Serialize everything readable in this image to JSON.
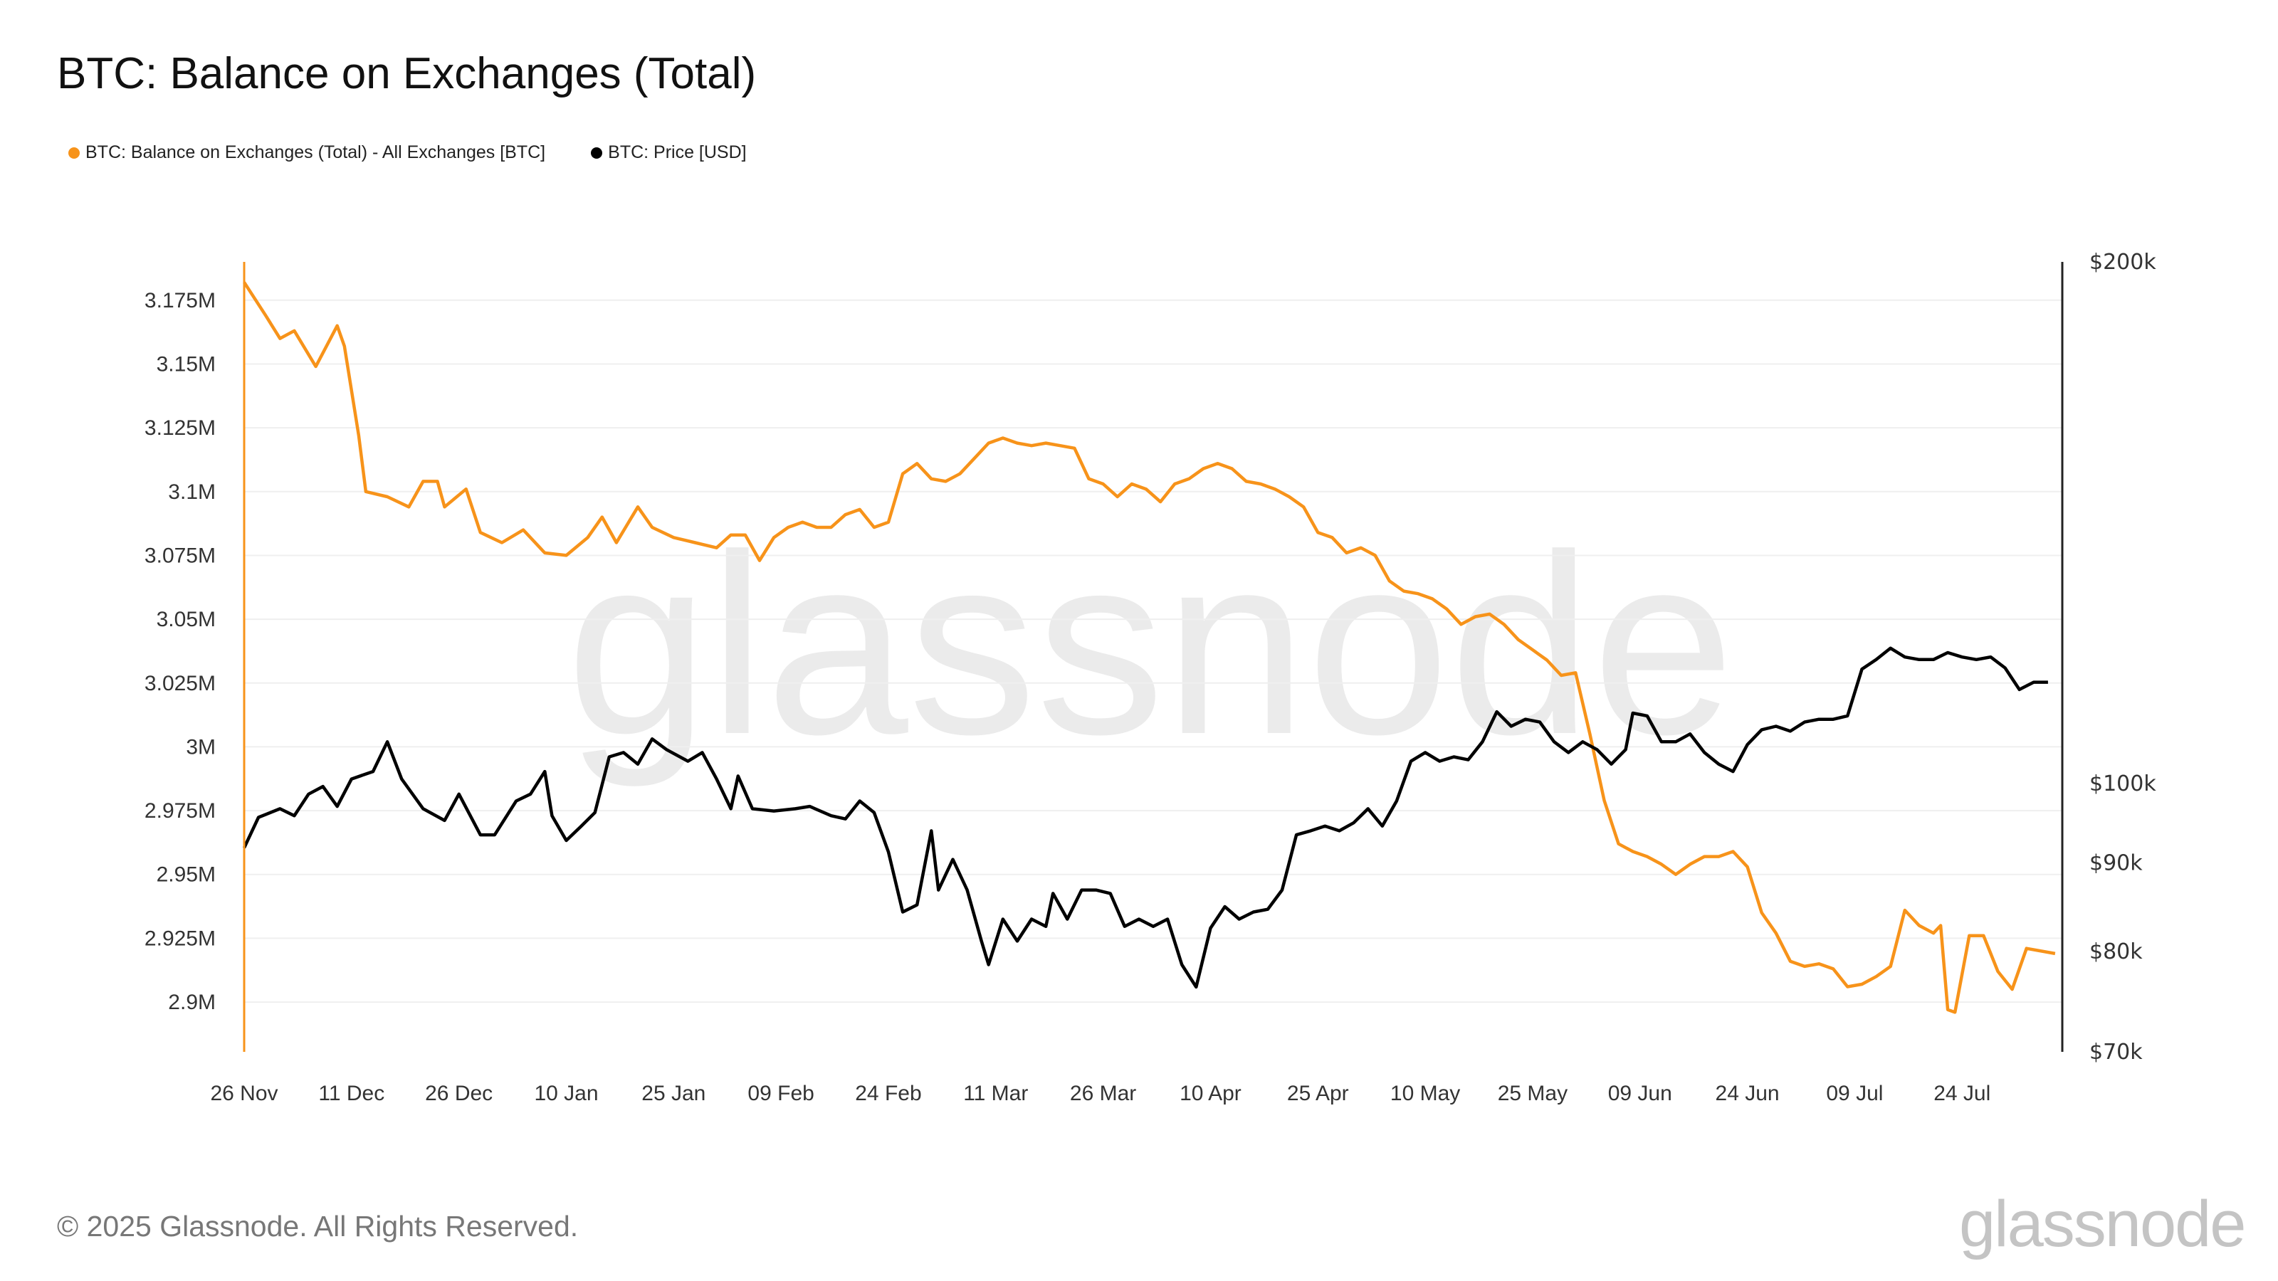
{
  "chart_data": {
    "type": "line",
    "title": "BTC: Balance on Exchanges (Total)",
    "watermark": "glassnode",
    "grid": true,
    "legend_placement": "top-left",
    "x_ticks": [
      "26 Nov",
      "11 Dec",
      "26 Dec",
      "10 Jan",
      "25 Jan",
      "09 Feb",
      "24 Feb",
      "11 Mar",
      "26 Mar",
      "10 Apr",
      "25 Apr",
      "10 May",
      "25 May",
      "09 Jun",
      "24 Jun",
      "09 Jul",
      "24 Jul"
    ],
    "x_tick_dates": [
      "2024-11-26",
      "2024-12-11",
      "2024-12-26",
      "2025-01-10",
      "2025-01-25",
      "2025-02-09",
      "2025-02-24",
      "2025-03-11",
      "2025-03-26",
      "2025-04-10",
      "2025-04-25",
      "2025-05-10",
      "2025-05-25",
      "2025-06-09",
      "2025-06-24",
      "2025-07-09",
      "2025-07-24"
    ],
    "xlim": [
      "2024-11-26",
      "2025-08-07"
    ],
    "y_left": {
      "scale": "linear",
      "lim": [
        2880500,
        3190000
      ],
      "ticks": [
        2900000,
        2925000,
        2950000,
        2975000,
        3000000,
        3025000,
        3050000,
        3075000,
        3100000,
        3125000,
        3150000,
        3175000
      ],
      "tick_labels": [
        "2.9M",
        "2.925M",
        "2.95M",
        "2.975M",
        "3M",
        "3.025M",
        "3.05M",
        "3.075M",
        "3.1M",
        "3.125M",
        "3.15M",
        "3.175M"
      ]
    },
    "y_right": {
      "scale": "log",
      "lim": [
        70000,
        200000
      ],
      "ticks": [
        70000,
        80000,
        90000,
        100000,
        200000
      ],
      "tick_labels": [
        "$70k",
        "$80k",
        "$90k",
        "$100k",
        "$200k"
      ]
    },
    "series": [
      {
        "name": "BTC: Balance on Exchanges (Total) - All Exchanges [BTC]",
        "axis": "left",
        "color": "#f7931a",
        "points": [
          [
            "2024-11-26",
            3182000
          ],
          [
            "2024-11-29",
            3169000
          ],
          [
            "2024-12-01",
            3160000
          ],
          [
            "2024-12-03",
            3163000
          ],
          [
            "2024-12-06",
            3149000
          ],
          [
            "2024-12-09",
            3165000
          ],
          [
            "2024-12-10",
            3157000
          ],
          [
            "2024-12-12",
            3122000
          ],
          [
            "2024-12-13",
            3100000
          ],
          [
            "2024-12-16",
            3098000
          ],
          [
            "2024-12-19",
            3094000
          ],
          [
            "2024-12-21",
            3104000
          ],
          [
            "2024-12-23",
            3104000
          ],
          [
            "2024-12-24",
            3094000
          ],
          [
            "2024-12-27",
            3101000
          ],
          [
            "2024-12-29",
            3084000
          ],
          [
            "2025-01-01",
            3080000
          ],
          [
            "2025-01-04",
            3085000
          ],
          [
            "2025-01-07",
            3076000
          ],
          [
            "2025-01-10",
            3075000
          ],
          [
            "2025-01-13",
            3082000
          ],
          [
            "2025-01-15",
            3090000
          ],
          [
            "2025-01-17",
            3080000
          ],
          [
            "2025-01-20",
            3094000
          ],
          [
            "2025-01-22",
            3086000
          ],
          [
            "2025-01-25",
            3082000
          ],
          [
            "2025-01-28",
            3080000
          ],
          [
            "2025-01-31",
            3078000
          ],
          [
            "2025-02-02",
            3083000
          ],
          [
            "2025-02-04",
            3083000
          ],
          [
            "2025-02-06",
            3073000
          ],
          [
            "2025-02-08",
            3082000
          ],
          [
            "2025-02-10",
            3086000
          ],
          [
            "2025-02-12",
            3088000
          ],
          [
            "2025-02-14",
            3086000
          ],
          [
            "2025-02-16",
            3086000
          ],
          [
            "2025-02-18",
            3091000
          ],
          [
            "2025-02-20",
            3093000
          ],
          [
            "2025-02-22",
            3086000
          ],
          [
            "2025-02-24",
            3088000
          ],
          [
            "2025-02-26",
            3107000
          ],
          [
            "2025-02-28",
            3111000
          ],
          [
            "2025-03-02",
            3105000
          ],
          [
            "2025-03-04",
            3104000
          ],
          [
            "2025-03-06",
            3107000
          ],
          [
            "2025-03-08",
            3113000
          ],
          [
            "2025-03-10",
            3119000
          ],
          [
            "2025-03-12",
            3121000
          ],
          [
            "2025-03-14",
            3119000
          ],
          [
            "2025-03-16",
            3118000
          ],
          [
            "2025-03-18",
            3119000
          ],
          [
            "2025-03-20",
            3118000
          ],
          [
            "2025-03-22",
            3117000
          ],
          [
            "2025-03-24",
            3105000
          ],
          [
            "2025-03-26",
            3103000
          ],
          [
            "2025-03-28",
            3098000
          ],
          [
            "2025-03-30",
            3103000
          ],
          [
            "2025-04-01",
            3101000
          ],
          [
            "2025-04-03",
            3096000
          ],
          [
            "2025-04-05",
            3103000
          ],
          [
            "2025-04-07",
            3105000
          ],
          [
            "2025-04-09",
            3109000
          ],
          [
            "2025-04-11",
            3111000
          ],
          [
            "2025-04-13",
            3109000
          ],
          [
            "2025-04-15",
            3104000
          ],
          [
            "2025-04-17",
            3103000
          ],
          [
            "2025-04-19",
            3101000
          ],
          [
            "2025-04-21",
            3098000
          ],
          [
            "2025-04-23",
            3094000
          ],
          [
            "2025-04-25",
            3084000
          ],
          [
            "2025-04-27",
            3082000
          ],
          [
            "2025-04-29",
            3076000
          ],
          [
            "2025-05-01",
            3078000
          ],
          [
            "2025-05-03",
            3075000
          ],
          [
            "2025-05-05",
            3065000
          ],
          [
            "2025-05-07",
            3061000
          ],
          [
            "2025-05-09",
            3060000
          ],
          [
            "2025-05-11",
            3058000
          ],
          [
            "2025-05-13",
            3054000
          ],
          [
            "2025-05-15",
            3048000
          ],
          [
            "2025-05-17",
            3051000
          ],
          [
            "2025-05-19",
            3052000
          ],
          [
            "2025-05-21",
            3048000
          ],
          [
            "2025-05-23",
            3042000
          ],
          [
            "2025-05-25",
            3038000
          ],
          [
            "2025-05-27",
            3034000
          ],
          [
            "2025-05-29",
            3028000
          ],
          [
            "2025-05-31",
            3029000
          ],
          [
            "2025-06-02",
            3005000
          ],
          [
            "2025-06-04",
            2979000
          ],
          [
            "2025-06-06",
            2962000
          ],
          [
            "2025-06-08",
            2959000
          ],
          [
            "2025-06-10",
            2957000
          ],
          [
            "2025-06-12",
            2954000
          ],
          [
            "2025-06-14",
            2950000
          ],
          [
            "2025-06-16",
            2954000
          ],
          [
            "2025-06-18",
            2957000
          ],
          [
            "2025-06-20",
            2957000
          ],
          [
            "2025-06-22",
            2959000
          ],
          [
            "2025-06-24",
            2953000
          ],
          [
            "2025-06-26",
            2935000
          ],
          [
            "2025-06-28",
            2927000
          ],
          [
            "2025-06-30",
            2916000
          ],
          [
            "2025-07-02",
            2914000
          ],
          [
            "2025-07-04",
            2915000
          ],
          [
            "2025-07-06",
            2913000
          ],
          [
            "2025-07-08",
            2906000
          ],
          [
            "2025-07-10",
            2907000
          ],
          [
            "2025-07-12",
            2910000
          ],
          [
            "2025-07-14",
            2914000
          ],
          [
            "2025-07-16",
            2936000
          ],
          [
            "2025-07-18",
            2930000
          ],
          [
            "2025-07-20",
            2927000
          ],
          [
            "2025-07-21",
            2930000
          ],
          [
            "2025-07-22",
            2897000
          ],
          [
            "2025-07-23",
            2896000
          ],
          [
            "2025-07-25",
            2926000
          ],
          [
            "2025-07-27",
            2926000
          ],
          [
            "2025-07-29",
            2912000
          ],
          [
            "2025-07-31",
            2905000
          ],
          [
            "2025-08-02",
            2921000
          ],
          [
            "2025-08-06",
            2919000
          ]
        ]
      },
      {
        "name": "BTC: Price [USD]",
        "axis": "right",
        "color": "#000000",
        "points": [
          [
            "2024-11-26",
            91800
          ],
          [
            "2024-11-28",
            95600
          ],
          [
            "2024-12-01",
            96700
          ],
          [
            "2024-12-03",
            95800
          ],
          [
            "2024-12-05",
            98600
          ],
          [
            "2024-12-07",
            99600
          ],
          [
            "2024-12-09",
            97000
          ],
          [
            "2024-12-11",
            100600
          ],
          [
            "2024-12-14",
            101600
          ],
          [
            "2024-12-16",
            105700
          ],
          [
            "2024-12-18",
            100600
          ],
          [
            "2024-12-21",
            96700
          ],
          [
            "2024-12-24",
            95200
          ],
          [
            "2024-12-26",
            98600
          ],
          [
            "2024-12-29",
            93400
          ],
          [
            "2024-12-31",
            93400
          ],
          [
            "2025-01-03",
            97700
          ],
          [
            "2025-01-05",
            98600
          ],
          [
            "2025-01-07",
            101600
          ],
          [
            "2025-01-08",
            95800
          ],
          [
            "2025-01-10",
            92700
          ],
          [
            "2025-01-12",
            94400
          ],
          [
            "2025-01-14",
            96200
          ],
          [
            "2025-01-16",
            103600
          ],
          [
            "2025-01-18",
            104200
          ],
          [
            "2025-01-20",
            102600
          ],
          [
            "2025-01-22",
            106100
          ],
          [
            "2025-01-24",
            104600
          ],
          [
            "2025-01-27",
            103000
          ],
          [
            "2025-01-29",
            104200
          ],
          [
            "2025-01-31",
            100600
          ],
          [
            "2025-02-02",
            96700
          ],
          [
            "2025-02-03",
            101000
          ],
          [
            "2025-02-05",
            96700
          ],
          [
            "2025-02-08",
            96400
          ],
          [
            "2025-02-11",
            96700
          ],
          [
            "2025-02-13",
            97000
          ],
          [
            "2025-02-16",
            95800
          ],
          [
            "2025-02-18",
            95400
          ],
          [
            "2025-02-20",
            97700
          ],
          [
            "2025-02-22",
            96200
          ],
          [
            "2025-02-24",
            91300
          ],
          [
            "2025-02-26",
            84300
          ],
          [
            "2025-02-28",
            85100
          ],
          [
            "2025-03-02",
            93900
          ],
          [
            "2025-03-03",
            86800
          ],
          [
            "2025-03-05",
            90400
          ],
          [
            "2025-03-07",
            86800
          ],
          [
            "2025-03-09",
            81100
          ],
          [
            "2025-03-10",
            78600
          ],
          [
            "2025-03-12",
            83500
          ],
          [
            "2025-03-14",
            81100
          ],
          [
            "2025-03-16",
            83500
          ],
          [
            "2025-03-18",
            82700
          ],
          [
            "2025-03-19",
            86400
          ],
          [
            "2025-03-21",
            83500
          ],
          [
            "2025-03-23",
            86800
          ],
          [
            "2025-03-25",
            86800
          ],
          [
            "2025-03-27",
            86400
          ],
          [
            "2025-03-29",
            82700
          ],
          [
            "2025-03-31",
            83500
          ],
          [
            "2025-04-02",
            82700
          ],
          [
            "2025-04-04",
            83500
          ],
          [
            "2025-04-06",
            78600
          ],
          [
            "2025-04-08",
            76300
          ],
          [
            "2025-04-10",
            82500
          ],
          [
            "2025-04-12",
            84900
          ],
          [
            "2025-04-14",
            83500
          ],
          [
            "2025-04-16",
            84300
          ],
          [
            "2025-04-18",
            84600
          ],
          [
            "2025-04-20",
            86800
          ],
          [
            "2025-04-22",
            93400
          ],
          [
            "2025-04-24",
            93900
          ],
          [
            "2025-04-26",
            94500
          ],
          [
            "2025-04-28",
            93900
          ],
          [
            "2025-04-30",
            94900
          ],
          [
            "2025-05-02",
            96700
          ],
          [
            "2025-05-04",
            94500
          ],
          [
            "2025-05-06",
            97700
          ],
          [
            "2025-05-08",
            103000
          ],
          [
            "2025-05-10",
            104200
          ],
          [
            "2025-05-12",
            103000
          ],
          [
            "2025-05-14",
            103600
          ],
          [
            "2025-05-16",
            103200
          ],
          [
            "2025-05-18",
            105700
          ],
          [
            "2025-05-20",
            110000
          ],
          [
            "2025-05-22",
            107900
          ],
          [
            "2025-05-24",
            108900
          ],
          [
            "2025-05-26",
            108500
          ],
          [
            "2025-05-28",
            105700
          ],
          [
            "2025-05-30",
            104200
          ],
          [
            "2025-06-01",
            105700
          ],
          [
            "2025-06-03",
            104600
          ],
          [
            "2025-06-05",
            102600
          ],
          [
            "2025-06-07",
            104600
          ],
          [
            "2025-06-08",
            109800
          ],
          [
            "2025-06-10",
            109400
          ],
          [
            "2025-06-12",
            105700
          ],
          [
            "2025-06-14",
            105700
          ],
          [
            "2025-06-16",
            106800
          ],
          [
            "2025-06-18",
            104200
          ],
          [
            "2025-06-20",
            102600
          ],
          [
            "2025-06-22",
            101600
          ],
          [
            "2025-06-24",
            105300
          ],
          [
            "2025-06-26",
            107400
          ],
          [
            "2025-06-28",
            107900
          ],
          [
            "2025-06-30",
            107200
          ],
          [
            "2025-07-02",
            108500
          ],
          [
            "2025-07-04",
            108900
          ],
          [
            "2025-07-06",
            108900
          ],
          [
            "2025-07-08",
            109400
          ],
          [
            "2025-07-10",
            116400
          ],
          [
            "2025-07-12",
            117900
          ],
          [
            "2025-07-14",
            119700
          ],
          [
            "2025-07-16",
            118300
          ],
          [
            "2025-07-18",
            117900
          ],
          [
            "2025-07-20",
            117900
          ],
          [
            "2025-07-22",
            119000
          ],
          [
            "2025-07-24",
            118300
          ],
          [
            "2025-07-26",
            117900
          ],
          [
            "2025-07-28",
            118300
          ],
          [
            "2025-07-30",
            116600
          ],
          [
            "2025-08-01",
            113300
          ],
          [
            "2025-08-03",
            114400
          ],
          [
            "2025-08-05",
            114400
          ]
        ]
      }
    ]
  },
  "footer": {
    "copyright": "© 2025 Glassnode. All Rights Reserved.",
    "logo": "glassnode"
  }
}
